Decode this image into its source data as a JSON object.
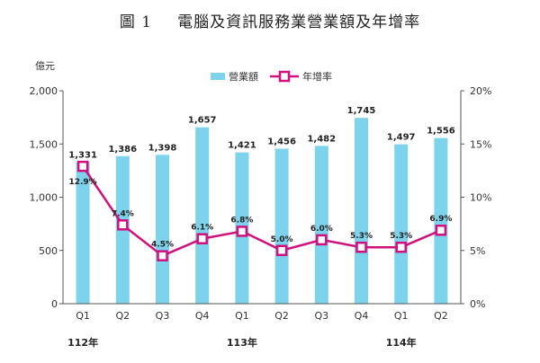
{
  "figure": {
    "number": "圖 1",
    "title": "電腦及資訊服務業營業額及年增率"
  },
  "chart_data": {
    "type": "bar+line",
    "title": "電腦及資訊服務業營業額及年增率",
    "y_left": {
      "unit": "億元",
      "lim": [
        0,
        2000
      ],
      "ticks": [
        "0",
        "500",
        "1,000",
        "1,500",
        "2,000"
      ]
    },
    "y_right": {
      "lim": [
        0,
        20
      ],
      "ticks": [
        "0%",
        "5%",
        "10%",
        "15%",
        "20%"
      ]
    },
    "categories": [
      "Q1",
      "Q2",
      "Q3",
      "Q4",
      "Q1",
      "Q2",
      "Q3",
      "Q4",
      "Q1",
      "Q2"
    ],
    "year_groups": [
      {
        "label": "112年",
        "index": 0
      },
      {
        "label": "113年",
        "index": 4
      },
      {
        "label": "114年",
        "index": 8
      }
    ],
    "series": [
      {
        "name": "營業額",
        "type": "bar",
        "axis": "left",
        "color": "#7dd3ec",
        "values": [
          1331,
          1386,
          1398,
          1657,
          1421,
          1456,
          1482,
          1745,
          1497,
          1556
        ],
        "labels": [
          "1,331",
          "1,386",
          "1,398",
          "1,657",
          "1,421",
          "1,456",
          "1,482",
          "1,745",
          "1,497",
          "1,556"
        ]
      },
      {
        "name": "年增率",
        "type": "line",
        "axis": "right",
        "color": "#d0107e",
        "values": [
          12.9,
          7.4,
          4.5,
          6.1,
          6.8,
          5.0,
          6.0,
          5.3,
          5.3,
          6.9
        ],
        "labels": [
          "12.9%",
          "7.4%",
          "4.5%",
          "6.1%",
          "6.8%",
          "5.0%",
          "6.0%",
          "5.3%",
          "5.3%",
          "6.9%"
        ]
      }
    ],
    "legend": "top-center",
    "grid": false
  }
}
